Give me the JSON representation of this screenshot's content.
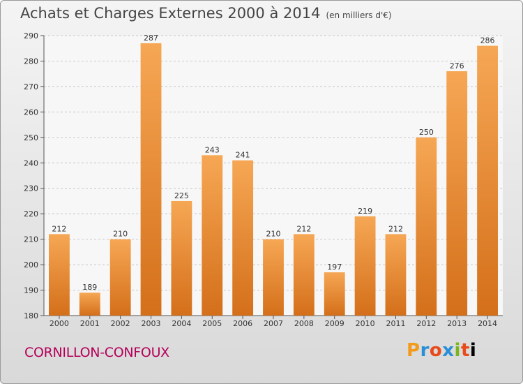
{
  "header": {
    "title": "Achats et Charges Externes 2000 à 2014",
    "subtitle": "(en milliers d'€)"
  },
  "footer": {
    "place": "CORNILLON-CONFOUX",
    "brand": "Proxiti"
  },
  "colors": {
    "bar_light": "#f6a754",
    "bar_dark": "#d46f1a",
    "axis": "#555555",
    "grid": "#c8c8c8",
    "place": "#b4005a"
  },
  "chart_data": {
    "type": "bar",
    "title": "Achats et Charges Externes 2000 à 2014",
    "subtitle": "(en milliers d'€)",
    "categories": [
      "2000",
      "2001",
      "2002",
      "2003",
      "2004",
      "2005",
      "2006",
      "2007",
      "2008",
      "2009",
      "2010",
      "2011",
      "2012",
      "2013",
      "2014"
    ],
    "values": [
      212,
      189,
      210,
      287,
      225,
      243,
      241,
      210,
      212,
      197,
      219,
      212,
      250,
      276,
      286
    ],
    "ylim": [
      180,
      290
    ],
    "yticks": [
      180,
      190,
      200,
      210,
      220,
      230,
      240,
      250,
      260,
      270,
      280,
      290
    ],
    "grid": true,
    "data_labels": true
  }
}
